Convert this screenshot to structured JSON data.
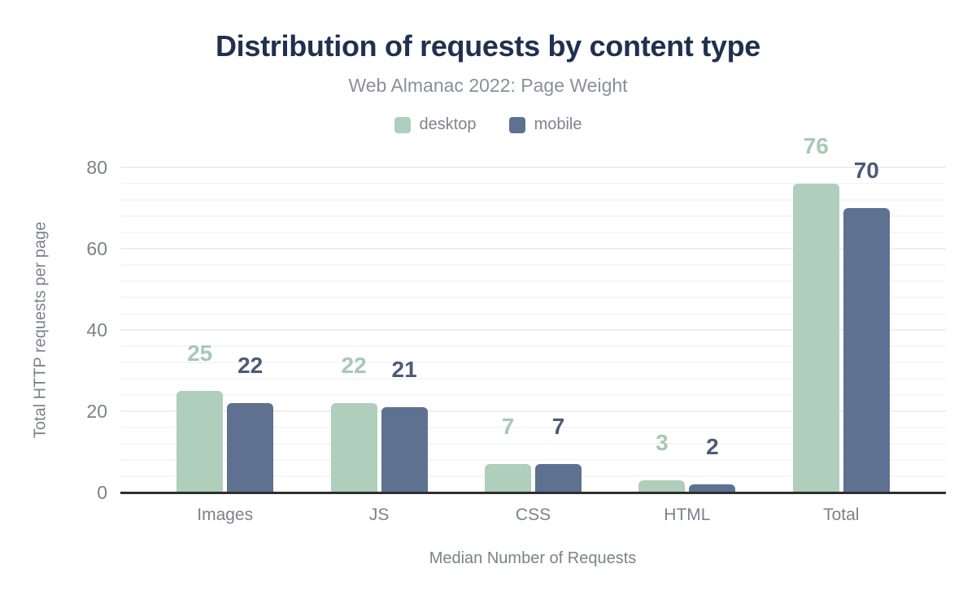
{
  "chart_data": {
    "type": "bar",
    "title": "Distribution of requests by content type",
    "subtitle": "Web Almanac 2022: Page Weight",
    "categories": [
      "Images",
      "JS",
      "CSS",
      "HTML",
      "Total"
    ],
    "series": [
      {
        "name": "desktop",
        "color": "#afcebc",
        "label_color": "#a6c9b5",
        "values": [
          25,
          22,
          7,
          3,
          76
        ]
      },
      {
        "name": "mobile",
        "color": "#5e7190",
        "label_color": "#4d5a77",
        "values": [
          22,
          21,
          7,
          2,
          70
        ]
      }
    ],
    "xlabel": "Median Number of Requests",
    "ylabel": "Total HTTP requests per page",
    "ylim": [
      0,
      80
    ],
    "yticks": [
      0,
      20,
      40,
      60,
      80
    ],
    "minor_grid_step": 4,
    "grid": "horizontal",
    "legend_position": "top",
    "data_labels": "above-bars"
  },
  "colors": {
    "title": "#20304f",
    "subtitle": "#8a9098",
    "legend_text": "#7d848d",
    "axis_text": "#7b828a",
    "axis_line": "#2f2f2f",
    "grid_minor": "#f6f6f6",
    "grid_major": "#eeeeee",
    "background": "#ffffff"
  }
}
